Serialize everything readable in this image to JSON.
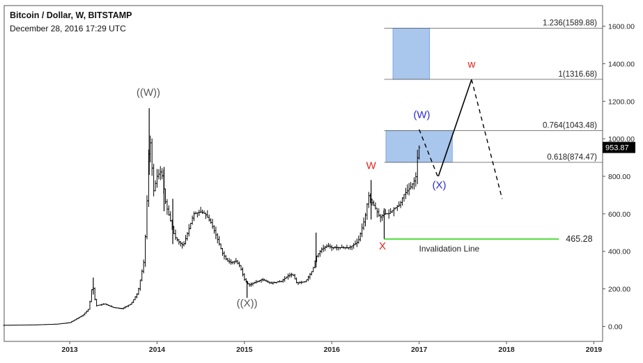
{
  "header": {
    "title": "Bitcoin / Dollar, W, BITSTAMP",
    "date": "December 28, 2016 17:29 UTC"
  },
  "chart_data": {
    "type": "ohlc",
    "x_axis": {
      "range": [
        2012.25,
        2019.1
      ],
      "ticks": [
        {
          "value": 2013,
          "label": "2013"
        },
        {
          "value": 2014,
          "label": "2014"
        },
        {
          "value": 2015,
          "label": "2015"
        },
        {
          "value": 2016,
          "label": "2016"
        },
        {
          "value": 2017,
          "label": "2017"
        },
        {
          "value": 2018,
          "label": "2018"
        },
        {
          "value": 2019,
          "label": "2019"
        }
      ]
    },
    "y_axis": {
      "position": "right",
      "range": [
        -80,
        1710
      ],
      "ticks": [
        {
          "value": 0,
          "label": "0.00"
        },
        {
          "value": 200,
          "label": "200.00"
        },
        {
          "value": 400,
          "label": "400.00"
        },
        {
          "value": 600,
          "label": "600.00"
        },
        {
          "value": 800,
          "label": "800.00"
        },
        {
          "value": 1000,
          "label": "1000.00"
        },
        {
          "value": 1200,
          "label": "1200.00"
        },
        {
          "value": 1400,
          "label": "1400.00"
        },
        {
          "value": 1600,
          "label": "1600.00"
        }
      ]
    },
    "price_path": [
      [
        2012.25,
        6
      ],
      [
        2012.6,
        8
      ],
      [
        2012.85,
        12
      ],
      [
        2013.0,
        20
      ],
      [
        2013.15,
        60
      ],
      [
        2013.22,
        95
      ],
      [
        2013.26,
        230
      ],
      [
        2013.3,
        110
      ],
      [
        2013.4,
        120
      ],
      [
        2013.5,
        100
      ],
      [
        2013.6,
        95
      ],
      [
        2013.7,
        120
      ],
      [
        2013.78,
        180
      ],
      [
        2013.85,
        350
      ],
      [
        2013.88,
        600
      ],
      [
        2013.9,
        900
      ],
      [
        2013.92,
        1000
      ],
      [
        2013.96,
        720
      ],
      [
        2014.0,
        800
      ],
      [
        2014.05,
        830
      ],
      [
        2014.1,
        650
      ],
      [
        2014.15,
        570
      ],
      [
        2014.2,
        480
      ],
      [
        2014.25,
        450
      ],
      [
        2014.3,
        430
      ],
      [
        2014.35,
        500
      ],
      [
        2014.42,
        600
      ],
      [
        2014.5,
        610
      ],
      [
        2014.55,
        600
      ],
      [
        2014.62,
        550
      ],
      [
        2014.68,
        480
      ],
      [
        2014.75,
        390
      ],
      [
        2014.8,
        350
      ],
      [
        2014.85,
        340
      ],
      [
        2014.9,
        350
      ],
      [
        2014.95,
        320
      ],
      [
        2015.0,
        250
      ],
      [
        2015.05,
        220
      ],
      [
        2015.1,
        230
      ],
      [
        2015.2,
        250
      ],
      [
        2015.3,
        230
      ],
      [
        2015.42,
        240
      ],
      [
        2015.5,
        270
      ],
      [
        2015.55,
        280
      ],
      [
        2015.6,
        230
      ],
      [
        2015.7,
        240
      ],
      [
        2015.78,
        300
      ],
      [
        2015.82,
        370
      ],
      [
        2015.88,
        410
      ],
      [
        2015.95,
        430
      ],
      [
        2016.0,
        420
      ],
      [
        2016.1,
        420
      ],
      [
        2016.2,
        420
      ],
      [
        2016.3,
        450
      ],
      [
        2016.38,
        580
      ],
      [
        2016.42,
        700
      ],
      [
        2016.46,
        660
      ],
      [
        2016.5,
        630
      ],
      [
        2016.55,
        580
      ],
      [
        2016.6,
        600
      ],
      [
        2016.65,
        600
      ],
      [
        2016.72,
        630
      ],
      [
        2016.78,
        650
      ],
      [
        2016.82,
        700
      ],
      [
        2016.9,
        740
      ],
      [
        2016.96,
        790
      ],
      [
        2016.985,
        920
      ],
      [
        2017.0,
        954
      ]
    ],
    "spikes": [
      [
        2013.27,
        260
      ],
      [
        2013.91,
        1163
      ],
      [
        2014.08,
        850
      ],
      [
        2014.18,
        680
      ],
      [
        2015.82,
        500
      ],
      [
        2016.45,
        780
      ]
    ],
    "dips": [
      [
        2015.03,
        152
      ],
      [
        2016.6,
        465
      ]
    ],
    "current_price": {
      "value": 953.87,
      "label": "953.87"
    },
    "fib_levels": [
      {
        "label": "1.236(1589.88)",
        "value": 1589.88
      },
      {
        "label": "1(1316.68)",
        "value": 1316.68
      },
      {
        "label": "0.764(1043.48)",
        "value": 1043.48
      },
      {
        "label": "0.618(874.47)",
        "value": 874.47
      }
    ],
    "fib_line_x_start": 2016.6,
    "target_zones": [
      {
        "x0": 2016.7,
        "x1": 2017.12,
        "y0": 1316.68,
        "y1": 1589.88
      },
      {
        "x0": 2016.62,
        "x1": 2017.38,
        "y0": 874.47,
        "y1": 1043.48
      }
    ],
    "invalidation": {
      "value": 465.28,
      "label": "465.28",
      "text": "Invalidation Line",
      "x0": 2016.6,
      "x1": 2018.6
    },
    "wave_labels": [
      {
        "text": "((W))",
        "x": 2013.9,
        "y": 1230,
        "color": "#555555"
      },
      {
        "text": "((X))",
        "x": 2015.03,
        "y": 105,
        "color": "#555555"
      },
      {
        "text": "W",
        "x": 2016.45,
        "y": 840,
        "color": "#e8211c"
      },
      {
        "text": "X",
        "x": 2016.58,
        "y": 410,
        "color": "#e8211c"
      },
      {
        "text": "(W)",
        "x": 2017.03,
        "y": 1110,
        "color": "#2a2ad6"
      },
      {
        "text": "(X)",
        "x": 2017.23,
        "y": 735,
        "color": "#2a2ad6"
      },
      {
        "text": "w",
        "x": 2017.6,
        "y": 1380,
        "color": "#e8211c"
      }
    ],
    "projection": {
      "solid": [
        [
          2017.22,
          800
        ],
        [
          2017.6,
          1316
        ]
      ],
      "dashed": [
        [
          [
            2017.0,
            1050
          ],
          [
            2017.22,
            790
          ]
        ],
        [
          [
            2017.6,
            1316
          ],
          [
            2017.95,
            680
          ]
        ]
      ]
    }
  }
}
